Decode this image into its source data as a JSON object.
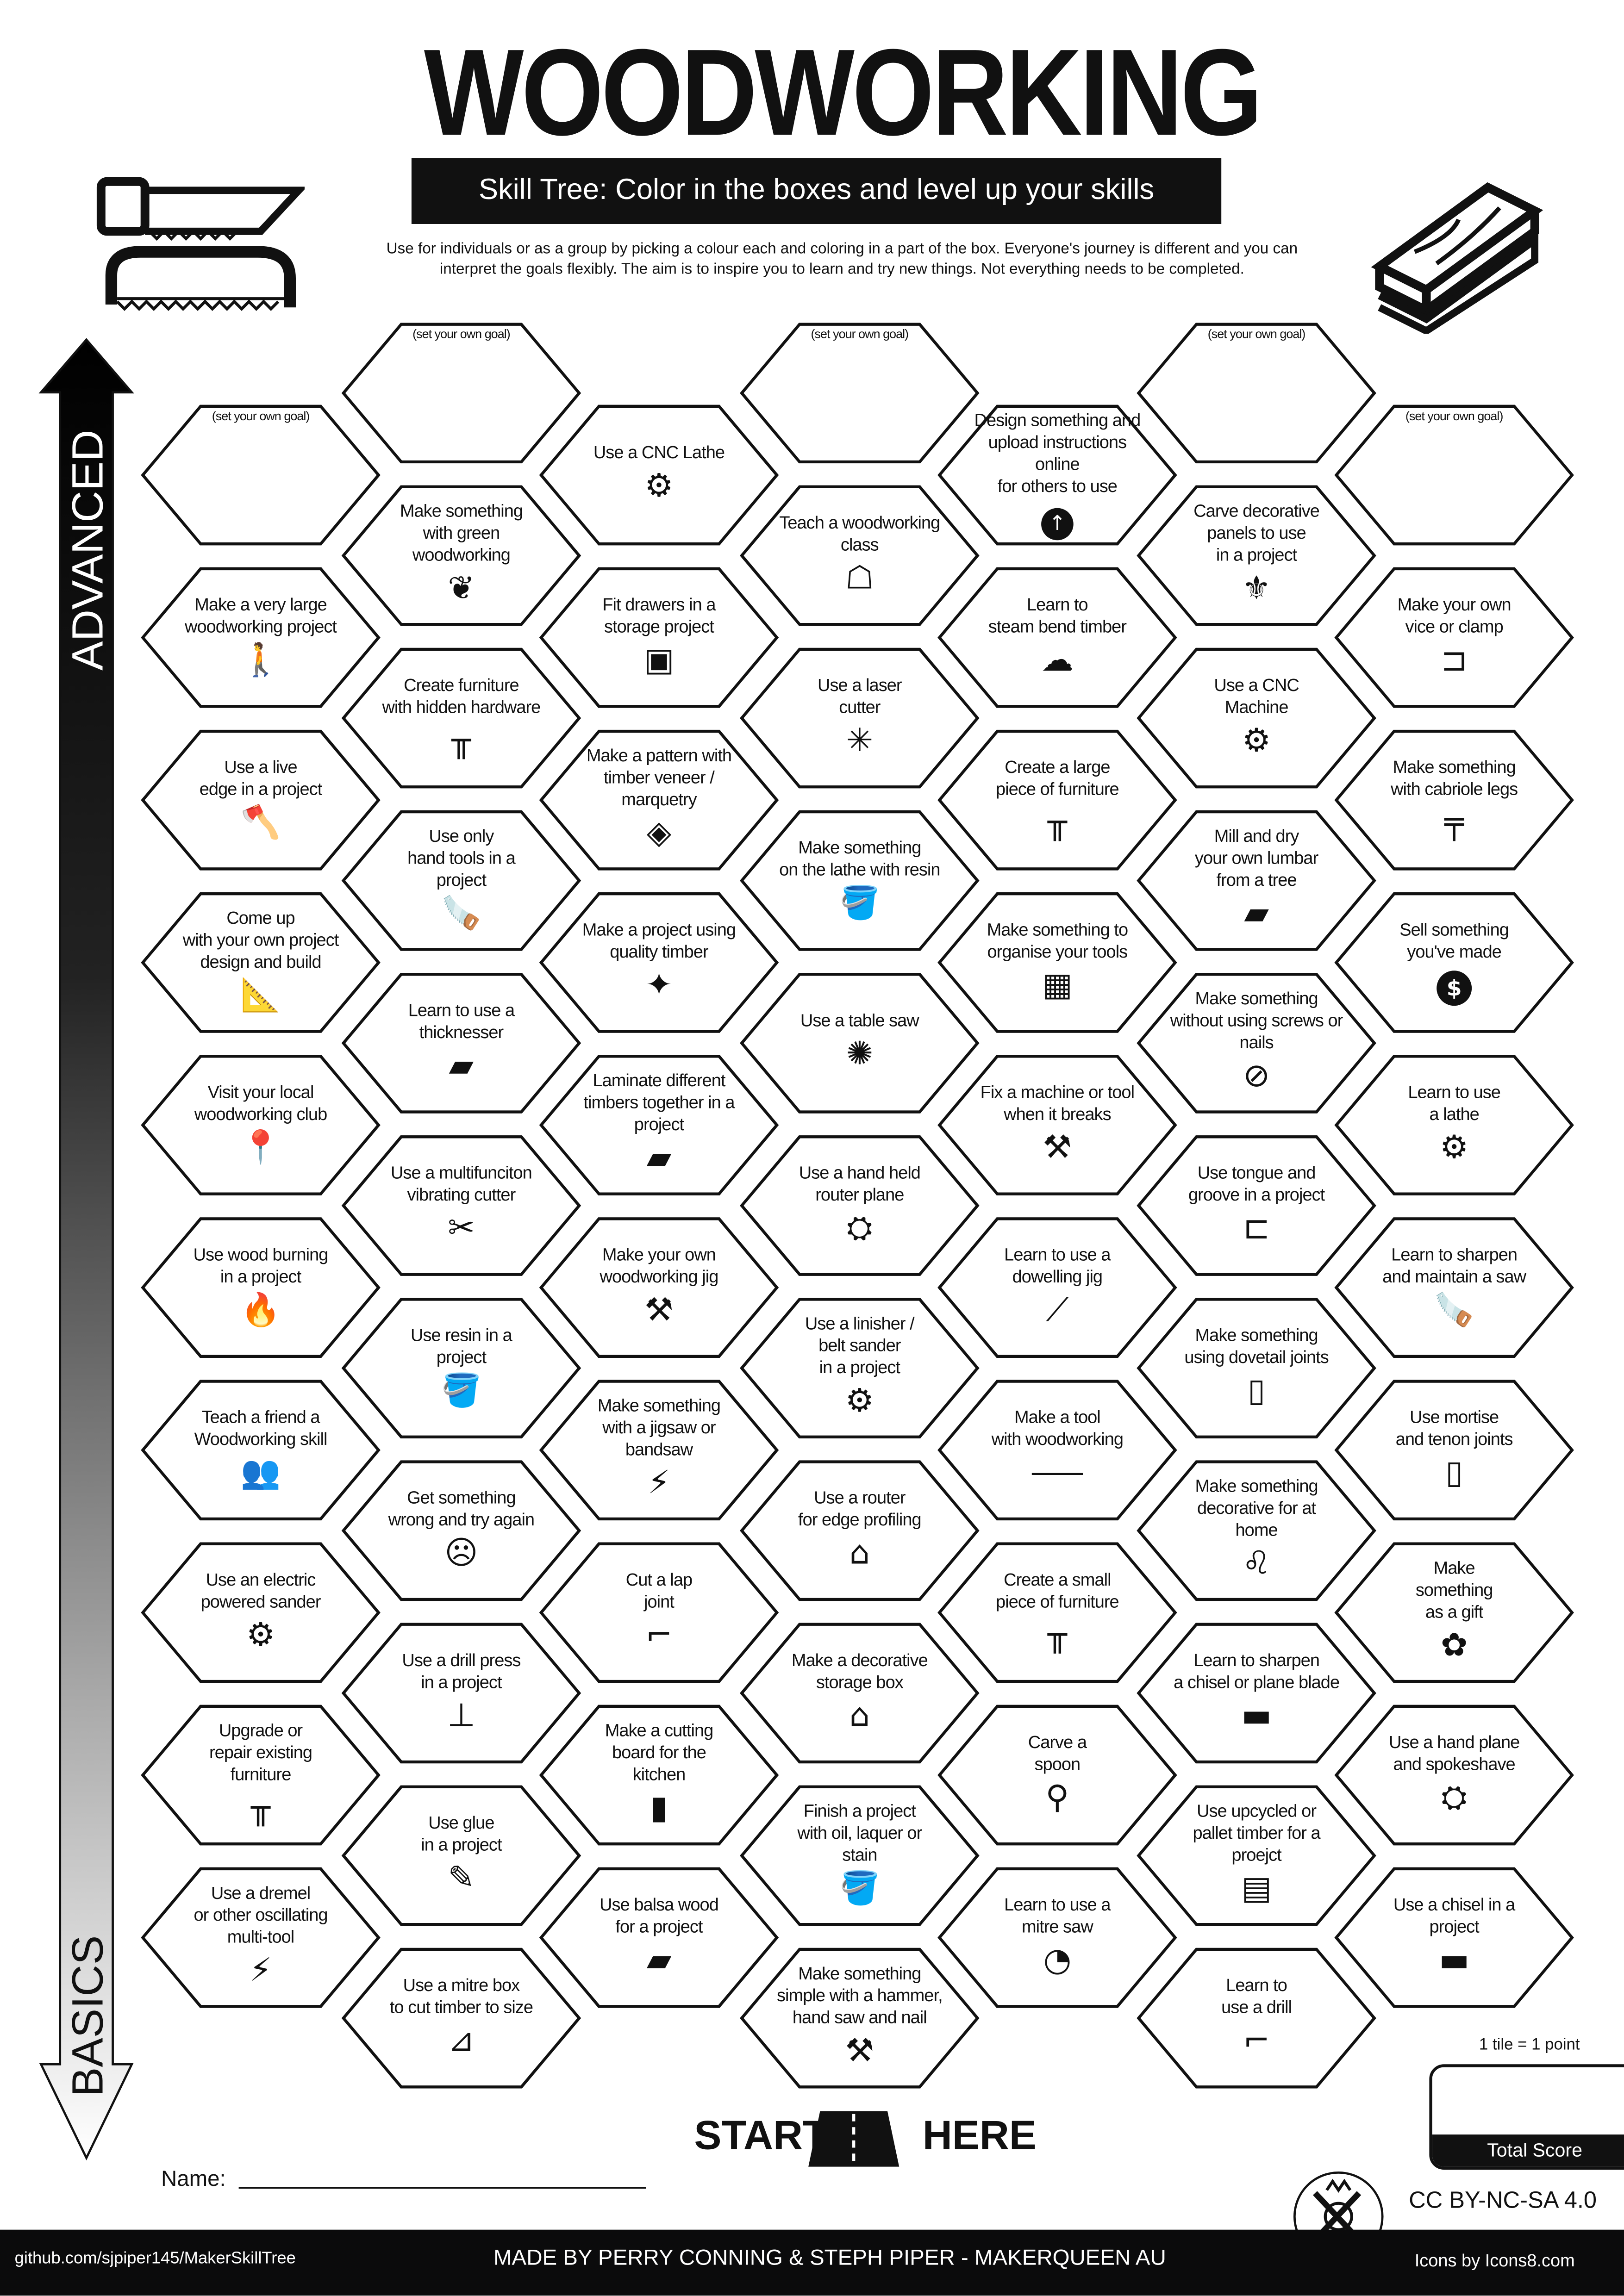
{
  "header": {
    "title": "WOODWORKING",
    "subtitle": "Skill Tree:  Color in the boxes and level up your skills",
    "description_line1": "Use for individuals or as a group by picking a colour each and coloring in a part of the box.  Everyone's journey is different and you can",
    "description_line2": "interpret the goals flexibly.  The aim is to inspire you to learn and try new things. Not everything needs to be completed.",
    "left_icon": "saw-icons",
    "right_icon": "timber-planks-icon"
  },
  "progress_arrow": {
    "top_label": "ADVANCED",
    "bottom_label": "BASICS"
  },
  "tiles": [
    [
      {
        "text": "(set your own goal)",
        "goal": true
      },
      {
        "text": "Make a very large\nwoodworking project",
        "icon": "person-carrying-box"
      },
      {
        "text": "Use a live\nedge in a project",
        "icon": "log-axe"
      },
      {
        "text": "Come up\nwith your own project\ndesign and build",
        "icon": "blueprint"
      },
      {
        "text": "Visit your local\nwoodworking club",
        "icon": "map-pin"
      },
      {
        "text": "Use wood burning\nin a project",
        "icon": "flame"
      },
      {
        "text": "Teach a friend a\nWoodworking skill",
        "icon": "people-laptop"
      },
      {
        "text": "Use an electric\npowered sander",
        "icon": "orbital-sander"
      },
      {
        "text": "Upgrade or\nrepair existing\nfurniture",
        "icon": "bench"
      },
      {
        "text": "Use a dremel\nor other oscillating\nmulti-tool",
        "icon": "dremel"
      }
    ],
    [
      {
        "text": "(set your own goal)",
        "goal": true
      },
      {
        "text": "Make something\nwith green woodworking",
        "icon": "sprout"
      },
      {
        "text": "Create furniture\nwith hidden hardware",
        "icon": "bench"
      },
      {
        "text": "Use only\nhand tools in a\nproject",
        "icon": "hand-saw"
      },
      {
        "text": "Learn to use a\nthicknesser",
        "icon": "timber-planks"
      },
      {
        "text": "Use a multifunciton\nvibrating cutter",
        "icon": "multitool-cutter"
      },
      {
        "text": "Use resin in a\nproject",
        "icon": "paint-can"
      },
      {
        "text": "Get something\nwrong and try again",
        "icon": "sad-frame"
      },
      {
        "text": "Use a drill press\nin a project",
        "icon": "drill-press"
      },
      {
        "text": "Use glue\nin a project",
        "icon": "glue-bottle"
      },
      {
        "text": "Use a mitre box\nto cut timber to size",
        "icon": "mitre-box"
      }
    ],
    [
      {
        "text": "Use a CNC Lathe",
        "icon": "cnc-lathe"
      },
      {
        "text": "Fit drawers in a\nstorage project",
        "icon": "cabinet"
      },
      {
        "text": "Make a pattern with\ntimber veneer / marquetry",
        "icon": "marquetry-pattern"
      },
      {
        "text": "Make a project using\nquality timber",
        "icon": "sparkle-planks"
      },
      {
        "text": "Laminate different\ntimbers together in a\nproject",
        "icon": "timber-planks"
      },
      {
        "text": "Make your own\nwoodworking jig",
        "icon": "wrench-screwdriver"
      },
      {
        "text": "Make something\nwith a jigsaw or\nbandsaw",
        "icon": "jigsaw"
      },
      {
        "text": "Cut a lap\njoint",
        "icon": "lap-joint"
      },
      {
        "text": "Make a cutting\nboard for the\nkitchen",
        "icon": "knife-board"
      },
      {
        "text": "Use balsa wood\nfor a project",
        "icon": "timber-planks"
      }
    ],
    [
      {
        "text": "(set your own goal)",
        "goal": true
      },
      {
        "text": "Teach a woodworking\nclass",
        "icon": "teacher-board"
      },
      {
        "text": "Use a laser\ncutter",
        "icon": "laser-burst"
      },
      {
        "text": "Make something\non the lathe with resin",
        "icon": "paint-can"
      },
      {
        "text": "Use a table saw",
        "icon": "saw-blade"
      },
      {
        "text": "Use a hand held\nrouter plane",
        "icon": "hand-plane"
      },
      {
        "text": "Use a linisher /\nbelt sander\nin a project",
        "icon": "belt-sander"
      },
      {
        "text": "Use a router\nfor edge profiling",
        "icon": "chest"
      },
      {
        "text": "Make a decorative\nstorage box",
        "icon": "treasure-box"
      },
      {
        "text": "Finish a project\nwith oil,  laquer or\nstain",
        "icon": "paint-can"
      },
      {
        "text": "Make something\nsimple with a hammer,\nhand saw and nail",
        "icon": "hammer"
      }
    ],
    [
      {
        "text": "Design something and\nupload instructions online\nfor others to use",
        "icon": "upload-arrow"
      },
      {
        "text": "Learn to\nsteam bend timber",
        "icon": "steam-cloud"
      },
      {
        "text": "Create a large\npiece of furniture",
        "icon": "bench"
      },
      {
        "text": "Make something to\norganise your tools",
        "icon": "pegboard"
      },
      {
        "text": "Fix a machine or tool\nwhen it breaks",
        "icon": "wrench-screwdriver"
      },
      {
        "text": "Learn to use a\ndowelling jig",
        "icon": "dowel"
      },
      {
        "text": "Make a tool\nwith woodworking",
        "icon": "carving-knife"
      },
      {
        "text": "Create a small\npiece of furniture",
        "icon": "bench"
      },
      {
        "text": "Carve a\nspoon",
        "icon": "spoon"
      },
      {
        "text": "Learn to use a\nmitre saw",
        "icon": "mitre-saw"
      }
    ],
    [
      {
        "text": "(set your own goal)",
        "goal": true
      },
      {
        "text": "Carve decorative\npanels to use\nin a project",
        "icon": "fleur-de-lis"
      },
      {
        "text": "Use a CNC\nMachine",
        "icon": "cnc-machine"
      },
      {
        "text": "Mill and dry\nyour own lumbar\nfrom a tree",
        "icon": "timber-planks"
      },
      {
        "text": "Make something\nwithout using screws or\nnails",
        "icon": "no-screws"
      },
      {
        "text": "Use tongue and\ngroove in a project",
        "icon": "tongue-groove"
      },
      {
        "text": "Make something\nusing dovetail joints",
        "icon": "dovetail"
      },
      {
        "text": "Make something\ndecorative for at\nhome",
        "icon": "lion-statue"
      },
      {
        "text": "Learn to sharpen\na chisel or plane blade",
        "icon": "chisel"
      },
      {
        "text": "Use upcycled or\npallet timber for a\nproejct",
        "icon": "pallet-crate"
      },
      {
        "text": "Learn to\nuse a drill",
        "icon": "power-drill"
      }
    ],
    [
      {
        "text": "(set your own goal)",
        "goal": true
      },
      {
        "text": "Make your own\nvice or clamp",
        "icon": "clamp"
      },
      {
        "text": "Make something\nwith cabriole legs",
        "icon": "table"
      },
      {
        "text": "Sell something\nyou've made",
        "icon": "dollar-coin"
      },
      {
        "text": "Learn to use\na lathe",
        "icon": "cnc-lathe"
      },
      {
        "text": "Learn to sharpen\nand maintain a saw",
        "icon": "hand-saw"
      },
      {
        "text": "Use mortise\nand tenon joints",
        "icon": "mortise-tenon"
      },
      {
        "text": "Make\nsomething\nas a gift",
        "icon": "gift-bow"
      },
      {
        "text": "Use a hand plane\nand spokeshave",
        "icon": "hand-plane"
      },
      {
        "text": "Use a chisel in a\nproject",
        "icon": "chisel"
      }
    ]
  ],
  "start": {
    "left": "START",
    "right": "HERE",
    "icon": "road-icon"
  },
  "name_label": "Name:",
  "score": {
    "rule": "1 tile = 1 point",
    "label": "Total Score"
  },
  "license": "CC BY-NC-SA 4.0",
  "footer": {
    "left": "github.com/sjpiper145/MakerSkillTree",
    "center": "MADE BY PERRY CONNING & STEPH PIPER  -  MAKERQUEEN AU",
    "right": "Icons by Icons8.com",
    "logo": "makerqueen-tools-logo"
  }
}
